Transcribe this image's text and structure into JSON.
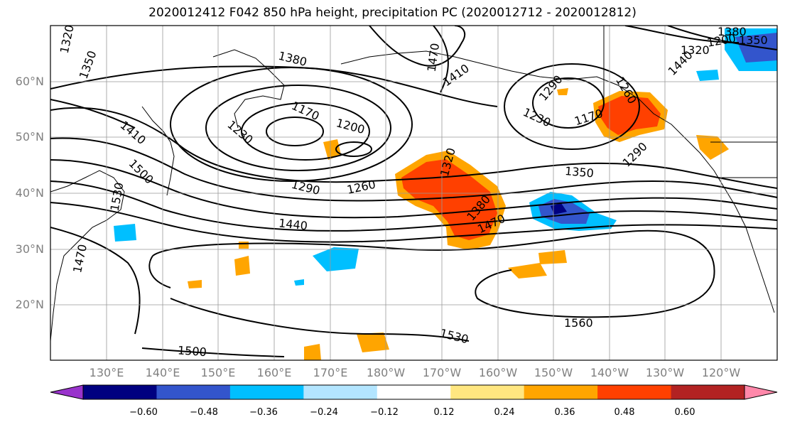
{
  "title": "2020012412 F042 850 hPa height, precipitation PC (2020012712 - 2020012812)",
  "lat_labels": [
    "60°N",
    "50°N",
    "40°N",
    "30°N",
    "20°N"
  ],
  "lon_labels": [
    "130°E",
    "140°E",
    "150°E",
    "160°E",
    "170°E",
    "180°W",
    "170°W",
    "160°W",
    "150°W",
    "140°W",
    "130°W",
    "120°W"
  ],
  "contour_labels": [
    "1320",
    "1350",
    "1380",
    "1440",
    "1470",
    "1410",
    "1170",
    "1200",
    "1230",
    "1260",
    "1290",
    "1410",
    "1500",
    "1530",
    "1470",
    "1440",
    "1470",
    "1380",
    "1320",
    "1260",
    "1230",
    "1290",
    "1170",
    "1350",
    "1200",
    "1290",
    "1320",
    "1380",
    "1350",
    "1560",
    "1530",
    "1500"
  ],
  "colorbar": {
    "ticks": [
      "−0.60",
      "−0.48",
      "−0.36",
      "−0.24",
      "−0.12",
      "0.12",
      "0.24",
      "0.36",
      "0.48",
      "0.60"
    ],
    "colors": [
      "#9933cc",
      "#000080",
      "#3355cc",
      "#00bfff",
      "#b3e5ff",
      "#ffffff",
      "#ffe680",
      "#ffa500",
      "#ff4000",
      "#b22222",
      "#ff88aa"
    ]
  }
}
